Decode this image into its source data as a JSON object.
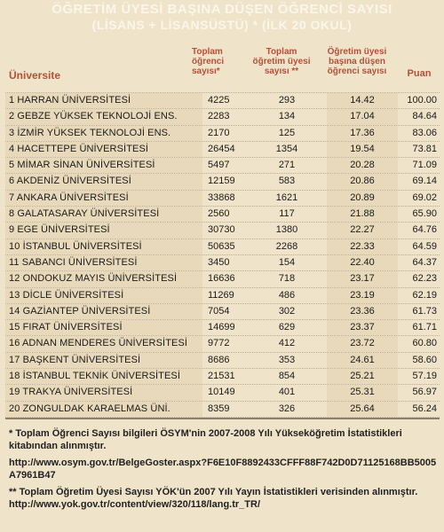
{
  "title": {
    "line1": "ÖĞRETİM ÜYESİ BAŞINA DÜŞEN ÖĞRENCİ SAYISI",
    "line2": "(LİSANS + LİSANSÜSTÜ) * (İLK 20 OKUL)"
  },
  "headers": {
    "university": "Üniversite",
    "students": "Toplam öğrenci sayısı*",
    "faculty": "Toplam öğretim üyesi sayısı **",
    "ratio": "Öğretim üyesi başına düşen öğrenci sayısı",
    "score": "Puan"
  },
  "rows": [
    {
      "name": "1 HARRAN ÜNİVERSİTESİ",
      "students": "4225",
      "faculty": "293",
      "ratio": "14.42",
      "score": "100.00"
    },
    {
      "name": "2 GEBZE YÜKSEK TEKNOLOJİ ENS.",
      "students": "2283",
      "faculty": "134",
      "ratio": "17.04",
      "score": "84.64"
    },
    {
      "name": "3 İZMİR YÜKSEK TEKNOLOJİ ENS.",
      "students": "2170",
      "faculty": "125",
      "ratio": "17.36",
      "score": "83.06"
    },
    {
      "name": "4 HACETTEPE ÜNİVERSİTESİ",
      "students": "26454",
      "faculty": "1354",
      "ratio": "19.54",
      "score": "73.81"
    },
    {
      "name": "5 MİMAR SİNAN ÜNİVERSİTESİ",
      "students": "5497",
      "faculty": "271",
      "ratio": "20.28",
      "score": "71.09"
    },
    {
      "name": "6 AKDENİZ ÜNİVERSİTESİ",
      "students": "12159",
      "faculty": "583",
      "ratio": "20.86",
      "score": "69.14"
    },
    {
      "name": "7 ANKARA ÜNİVERSİTESİ",
      "students": "33868",
      "faculty": "1621",
      "ratio": "20.89",
      "score": "69.02"
    },
    {
      "name": "8 GALATASARAY ÜNİVERSİTESİ",
      "students": "2560",
      "faculty": "117",
      "ratio": "21.88",
      "score": "65.90"
    },
    {
      "name": "9 EGE ÜNİVERSİTESİ",
      "students": "30730",
      "faculty": "1380",
      "ratio": "22.27",
      "score": "64.76"
    },
    {
      "name": "10 İSTANBUL ÜNİVERSİTESİ",
      "students": "50635",
      "faculty": "2268",
      "ratio": "22.33",
      "score": "64.59"
    },
    {
      "name": "11 SABANCI ÜNİVERSİTESİ",
      "students": "3450",
      "faculty": "154",
      "ratio": "22.40",
      "score": "64.37"
    },
    {
      "name": "12 ONDOKUZ MAYIS ÜNİVERSİTESİ",
      "students": "16636",
      "faculty": "718",
      "ratio": "23.17",
      "score": "62.23"
    },
    {
      "name": "13 DİCLE ÜNİVERSİTESİ",
      "students": "11269",
      "faculty": "486",
      "ratio": "23.19",
      "score": "62.19"
    },
    {
      "name": "14 GAZİANTEP ÜNİVERSİTESİ",
      "students": "7054",
      "faculty": "302",
      "ratio": "23.36",
      "score": "61.73"
    },
    {
      "name": "15 FIRAT ÜNİVERSİTESİ",
      "students": "14699",
      "faculty": "629",
      "ratio": "23.37",
      "score": "61.71"
    },
    {
      "name": "16 ADNAN MENDERES ÜNİVERSİTESİ",
      "students": "9772",
      "faculty": "412",
      "ratio": "23.72",
      "score": "60.80"
    },
    {
      "name": "17 BAŞKENT ÜNİVERSİTESİ",
      "students": "8686",
      "faculty": "353",
      "ratio": "24.61",
      "score": "58.60"
    },
    {
      "name": "18 İSTANBUL TEKNİK ÜNİVERSİTESİ",
      "students": "21531",
      "faculty": "854",
      "ratio": "25.21",
      "score": "57.19"
    },
    {
      "name": "19 TRAKYA ÜNİVERSİTESİ",
      "students": "10149",
      "faculty": "401",
      "ratio": "25.31",
      "score": "56.97"
    },
    {
      "name": "20 ZONGULDAK KARAELMAS ÜNİ.",
      "students": "8359",
      "faculty": "326",
      "ratio": "25.64",
      "score": "56.24"
    }
  ],
  "notes": {
    "note1": "* Toplam Öğrenci Sayısı bilgileri ÖSYM'nin 2007-2008 Yılı Yükseköğretim İstatistikleri kitabından alınmıştır.",
    "url1": "http://www.osym.gov.tr/BelgeGoster.aspx?F6E10F8892433CFFF88F742D0D71125168BB5005A7961B47",
    "note2": "** Toplam Öğretim Üyesi Sayısı YÖK'ün 2007 Yılı Yayın İstatistikleri verisinden alınmıştır.",
    "url2": "http://www.yok.gov.tr/content/view/320/118/lang.tr_TR/"
  }
}
